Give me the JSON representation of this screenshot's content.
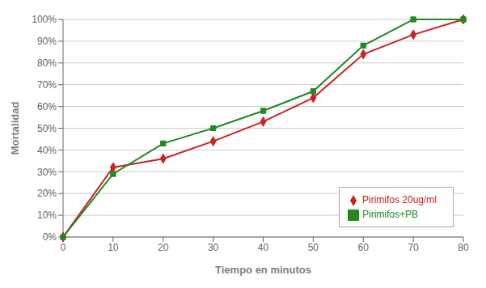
{
  "chart_data": {
    "type": "line",
    "x": [
      0,
      10,
      20,
      30,
      40,
      50,
      60,
      70,
      80
    ],
    "series": [
      {
        "name": "Pirimifos 20ug/ml",
        "color": "#cc2222",
        "marker": "diamond",
        "values": [
          0,
          0.32,
          0.36,
          0.44,
          0.53,
          0.64,
          0.84,
          0.93,
          1.0
        ]
      },
      {
        "name": "Pirimifos+PB",
        "color": "#228822",
        "marker": "square",
        "values": [
          0,
          0.29,
          0.43,
          0.5,
          0.58,
          0.67,
          0.88,
          1.0,
          1.0
        ]
      }
    ],
    "xlabel": "Tiempo en minutos",
    "ylabel": "Mortalidad",
    "xlim": [
      0,
      80
    ],
    "ylim": [
      0,
      1.0
    ],
    "xticks": [
      0,
      10,
      20,
      30,
      40,
      50,
      60,
      70,
      80
    ],
    "yticks": [
      {
        "value": 0,
        "label": "0%"
      },
      {
        "value": 0.1,
        "label": "10%"
      },
      {
        "value": 0.2,
        "label": "20%"
      },
      {
        "value": 0.3,
        "label": "30%"
      },
      {
        "value": 0.4,
        "label": "40%"
      },
      {
        "value": 0.5,
        "label": "50%"
      },
      {
        "value": 0.6,
        "label": "60%"
      },
      {
        "value": 0.7,
        "label": "70%"
      },
      {
        "value": 0.8,
        "label": "80%"
      },
      {
        "value": 0.9,
        "label": "90%"
      },
      {
        "value": 1.0,
        "label": "100%"
      }
    ],
    "grid": true,
    "legend": "lower right"
  }
}
